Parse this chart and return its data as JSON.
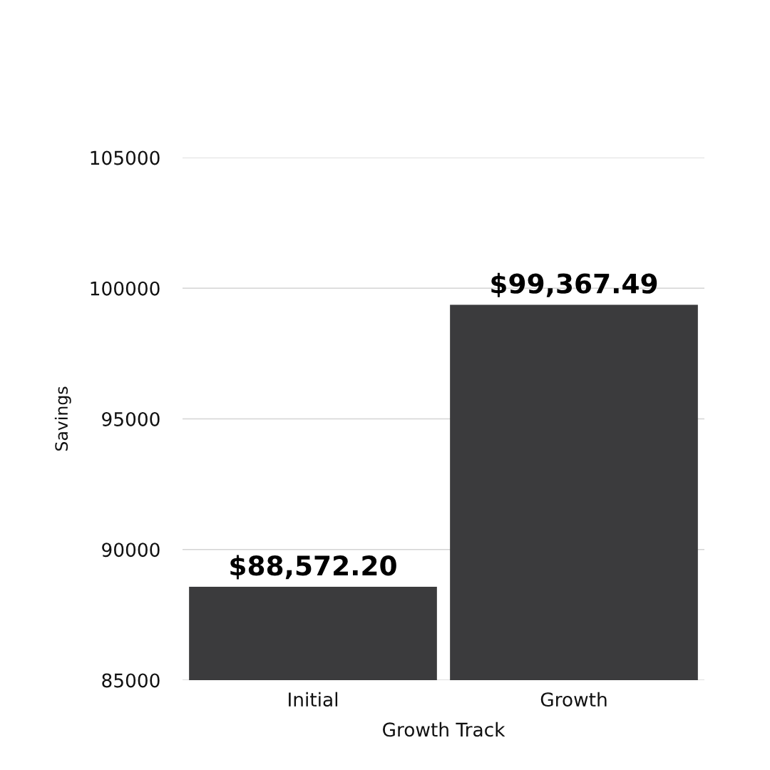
{
  "chart_data": {
    "type": "bar",
    "xlabel": "Growth Track",
    "ylabel": "Savings",
    "categories": [
      "Initial",
      "Growth"
    ],
    "values": [
      88572.2,
      99367.49
    ],
    "color": "#3b3b3d",
    "value_labels": [
      "$88,572.20",
      "$99,367.49"
    ],
    "ylim": [
      85000,
      105000
    ],
    "yticks": [
      85000,
      90000,
      95000,
      100000,
      105000
    ],
    "grid": "y"
  }
}
